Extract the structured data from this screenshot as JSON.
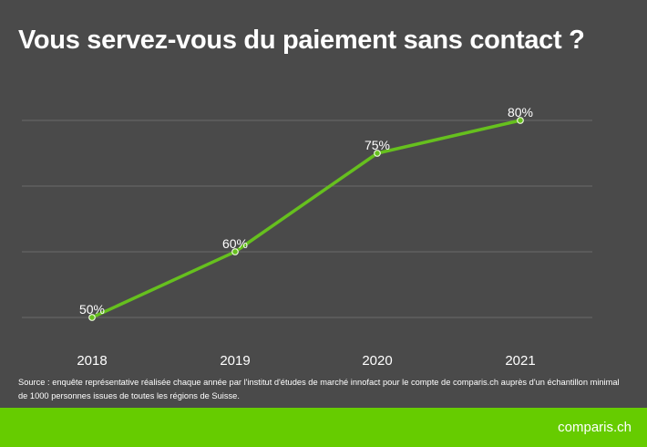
{
  "title": "Vous servez-vous du paiement sans contact ?",
  "source": "Source : enquête représentative réalisée chaque année par l'institut d'études de marché innofact pour le compte de comparis.ch auprès d'un échantillon minimal de 1000 personnes issues de toutes les régions de Suisse.",
  "logo": "comparis.ch",
  "colors": {
    "background": "#4a4a4a",
    "line": "#66c01e",
    "footer": "#66cc00",
    "grid": "#6a6a6a"
  },
  "chart_data": {
    "type": "line",
    "title": "Vous servez-vous du paiement sans contact ?",
    "categories": [
      "2018",
      "2019",
      "2020",
      "2021"
    ],
    "series": [
      {
        "values": [
          50,
          60,
          75,
          80
        ]
      }
    ],
    "data_labels": [
      "50%",
      "60%",
      "75%",
      "80%"
    ],
    "ylim": [
      50,
      80
    ],
    "gridlines_y": [
      50,
      60,
      70,
      80
    ],
    "grid": true,
    "legend": "none"
  }
}
